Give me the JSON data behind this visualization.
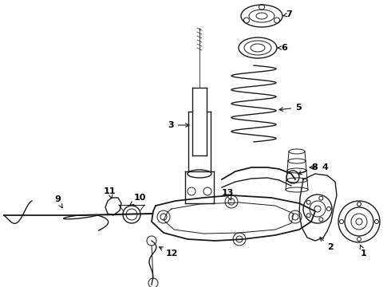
{
  "bg_color": "#ffffff",
  "line_color": "#1a1a1a",
  "label_color": "#000000",
  "fig_width": 4.9,
  "fig_height": 3.6,
  "dpi": 100,
  "font_size": 8.0,
  "font_weight": "bold"
}
